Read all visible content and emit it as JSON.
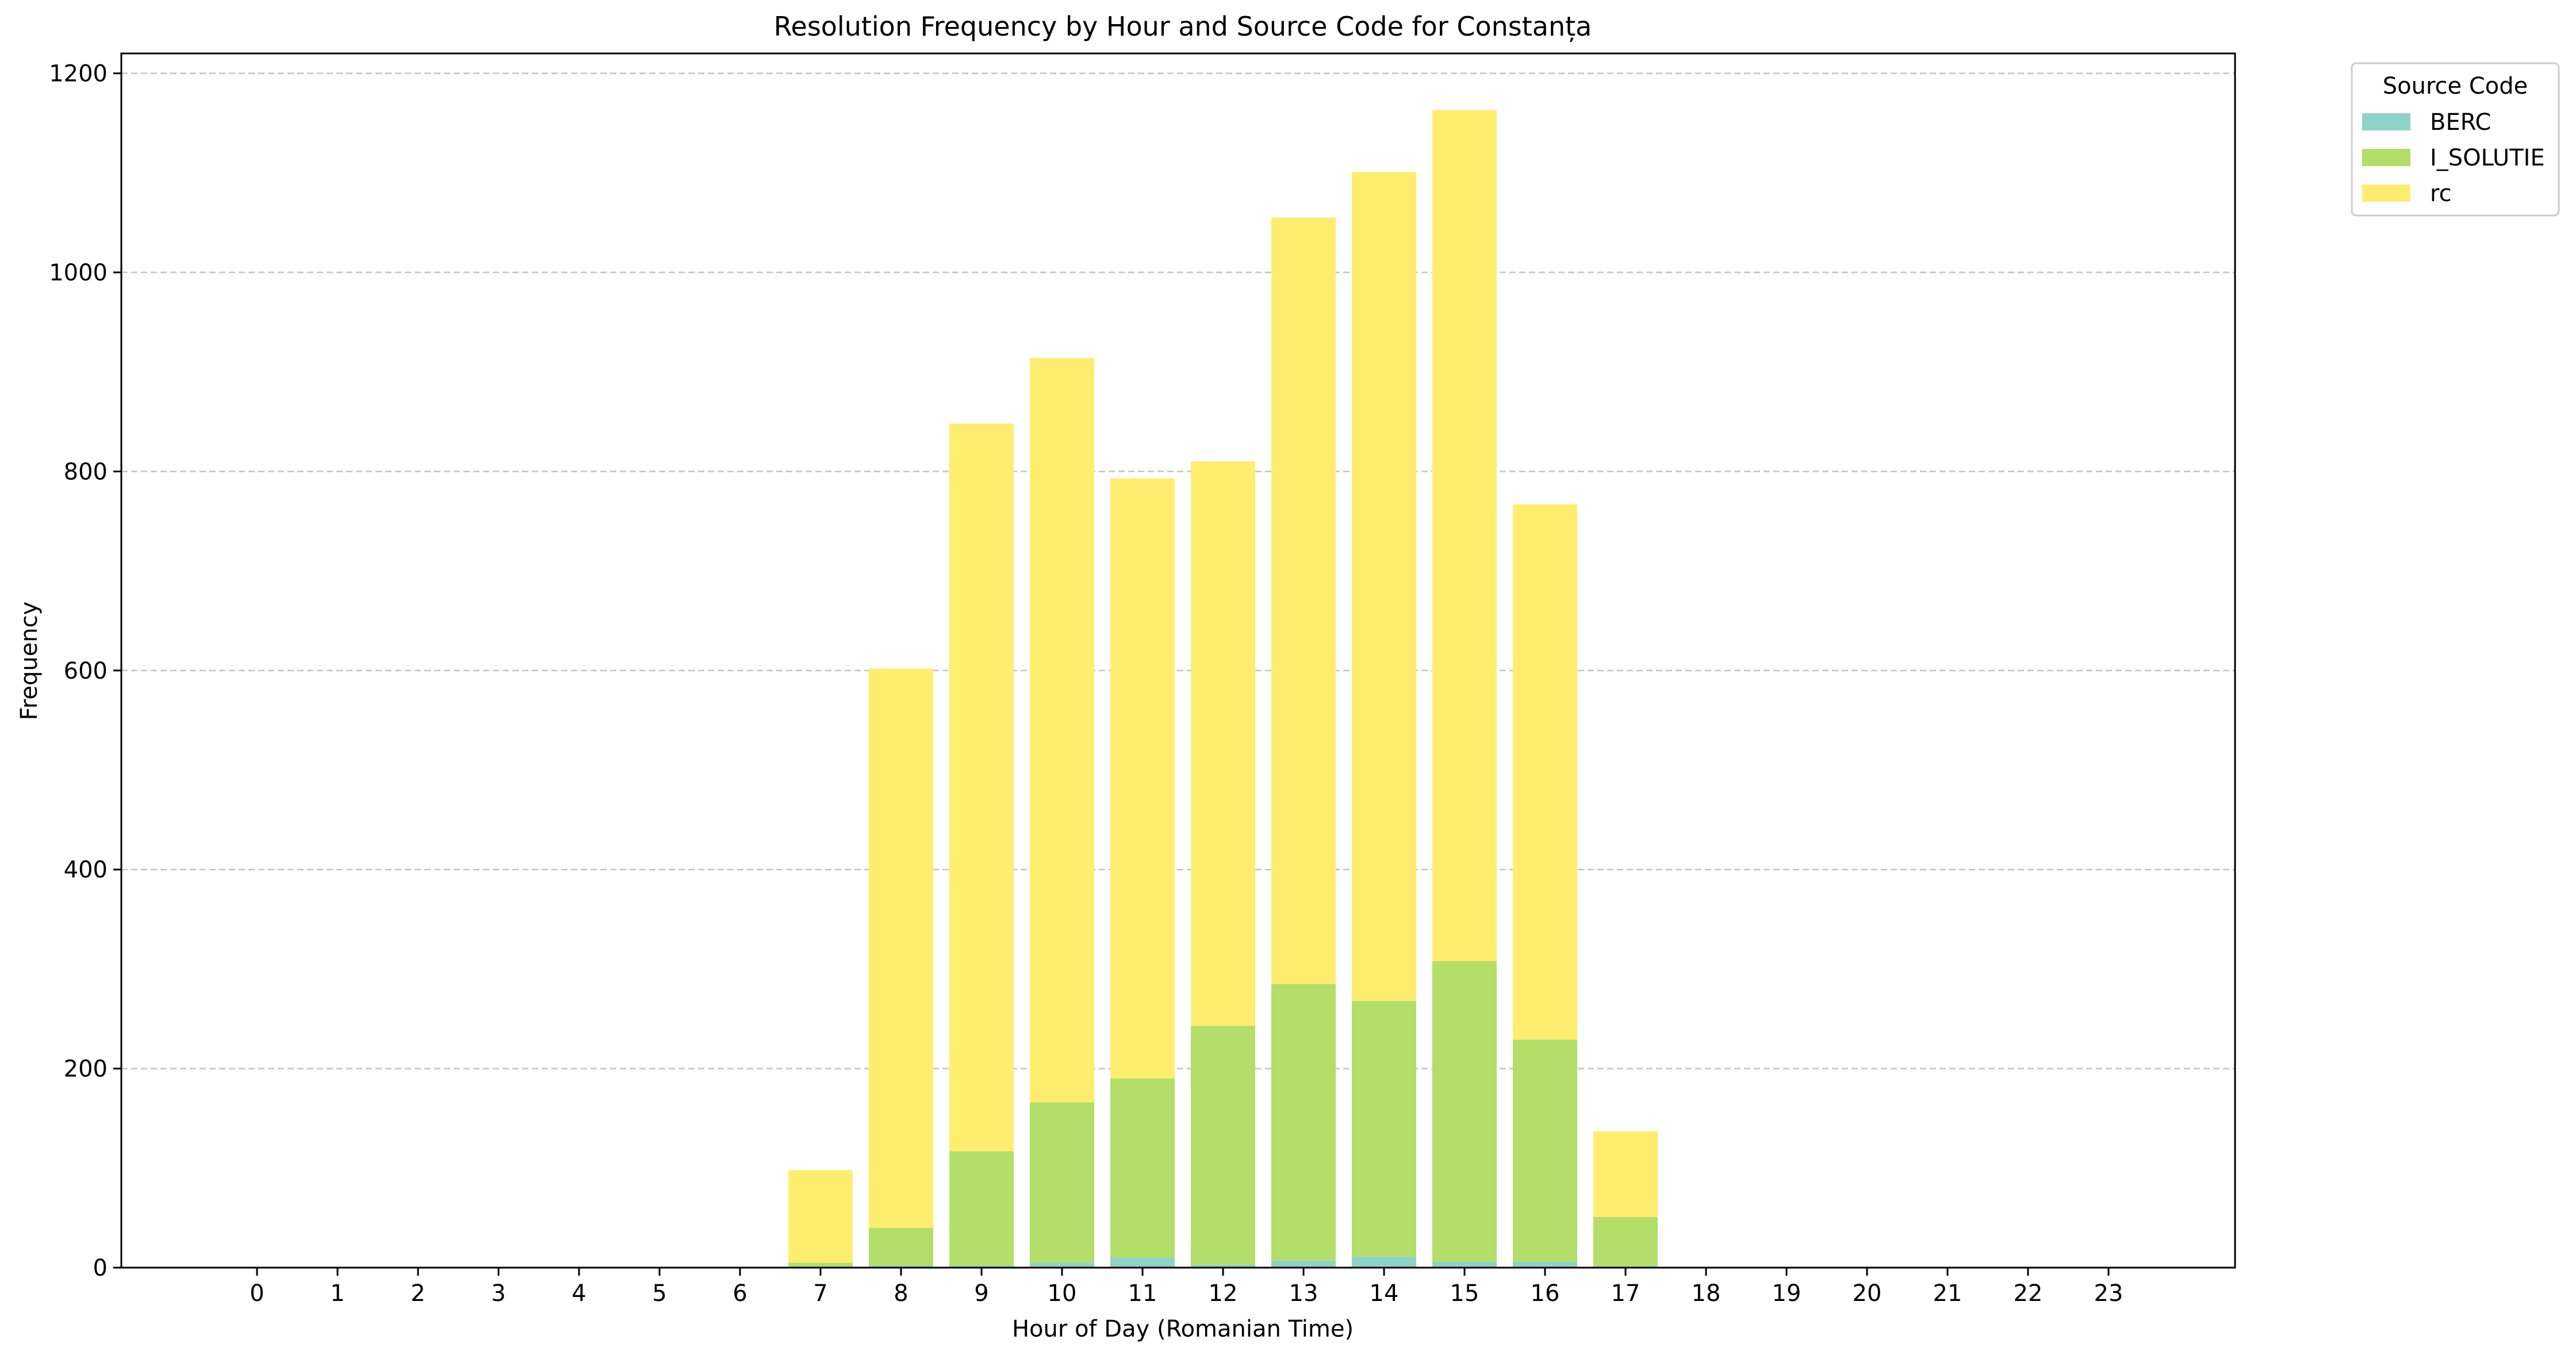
{
  "chart_data": {
    "type": "bar",
    "stacked": true,
    "title": "Resolution Frequency by Hour and Source Code for Constanța",
    "xlabel": "Hour of Day (Romanian Time)",
    "ylabel": "Frequency",
    "ylim": [
      0,
      1220
    ],
    "yticks": [
      0,
      200,
      400,
      600,
      800,
      1000,
      1200
    ],
    "grid": "y-dashed",
    "legend_title": "Source Code",
    "legend_position": "outside-top-right",
    "categories": [
      "0",
      "1",
      "2",
      "3",
      "4",
      "5",
      "6",
      "7",
      "8",
      "9",
      "10",
      "11",
      "12",
      "13",
      "14",
      "15",
      "16",
      "17",
      "18",
      "19",
      "20",
      "21",
      "22",
      "23"
    ],
    "series": [
      {
        "name": "BERC",
        "color": "#8dd3c7",
        "values": [
          0,
          0,
          0,
          0,
          0,
          0,
          0,
          0,
          2,
          2,
          5,
          10,
          3,
          7,
          11,
          6,
          6,
          0,
          0,
          0,
          0,
          0,
          0,
          0
        ]
      },
      {
        "name": "I_SOLUTIE",
        "color": "#b3de69",
        "values": [
          0,
          0,
          0,
          0,
          0,
          0,
          0,
          5,
          38,
          115,
          161,
          180,
          240,
          278,
          257,
          302,
          223,
          51,
          0,
          0,
          0,
          0,
          0,
          0
        ]
      },
      {
        "name": "rc",
        "color": "#ffed6f",
        "values": [
          0,
          0,
          0,
          0,
          0,
          0,
          0,
          93,
          562,
          731,
          748,
          603,
          567,
          770,
          833,
          855,
          538,
          86,
          0,
          0,
          0,
          0,
          0,
          0
        ]
      }
    ]
  }
}
